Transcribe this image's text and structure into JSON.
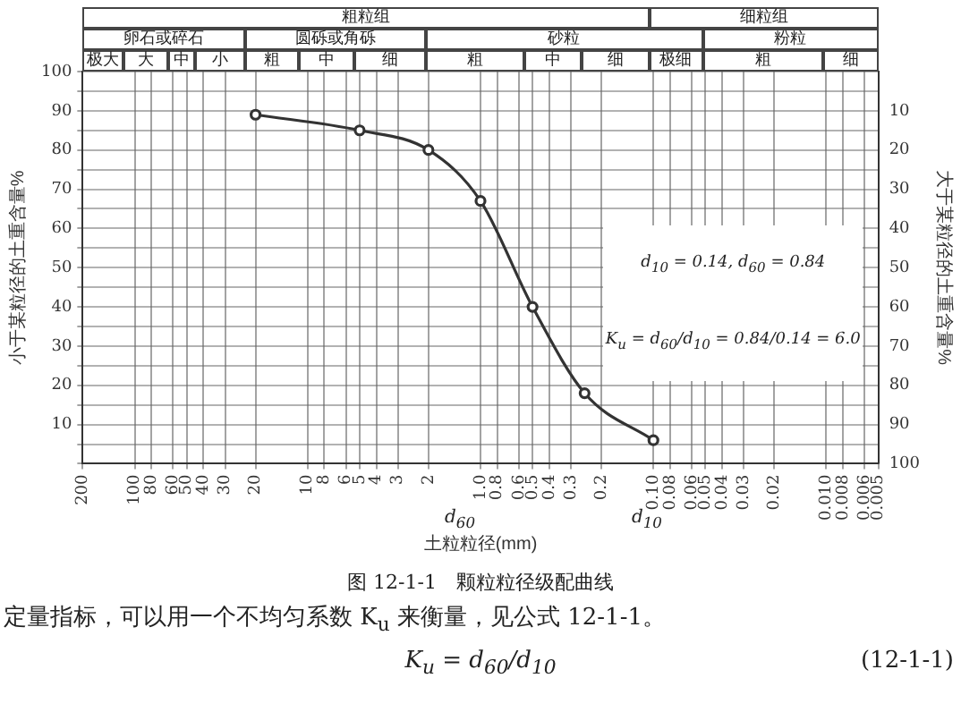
{
  "chart_data": {
    "type": "line",
    "xlabel": "土粒粒径(mm)",
    "ylabel": "小于某粒径的土重含量%",
    "y2label": "大于某粒径的土重含量%",
    "series": [
      {
        "color": "#333333",
        "x": [
          20,
          5,
          2,
          1,
          0.5,
          0.25,
          0.1
        ],
        "values": [
          89,
          85,
          80,
          67,
          40,
          18,
          6
        ]
      }
    ],
    "log": "x",
    "xlim": [
      200,
      0.005
    ],
    "xticks": [
      200,
      100,
      80,
      60,
      50,
      40,
      30,
      20,
      10,
      8,
      6,
      5,
      4,
      3,
      2,
      {
        "value": 1,
        "label": "1.0"
      },
      0.8,
      0.6,
      0.5,
      0.4,
      0.3,
      0.2,
      {
        "value": 0.1,
        "label": "0.10"
      },
      0.08,
      0.06,
      0.05,
      0.04,
      0.03,
      0.02,
      {
        "value": 0.01,
        "label": "0.010"
      },
      0.008,
      0.006,
      0.005
    ],
    "ylim": [
      0,
      100
    ],
    "yticks": [
      {
        "value": 0,
        "label": null
      },
      {
        "value": 5,
        "label": null
      },
      10,
      {
        "value": 15,
        "label": null
      },
      20,
      {
        "value": 25,
        "label": null
      },
      30,
      {
        "value": 35,
        "label": null
      },
      40,
      {
        "value": 45,
        "label": null
      },
      50,
      {
        "value": 55,
        "label": null
      },
      60,
      {
        "value": 65,
        "label": null
      },
      70,
      {
        "value": 75,
        "label": null
      },
      80,
      {
        "value": 85,
        "label": null
      },
      90,
      {
        "value": 95,
        "label": null
      },
      100
    ],
    "y2lim": [
      100,
      0
    ],
    "y2ticks": [
      10,
      20,
      30,
      40,
      50,
      60,
      70,
      80,
      90,
      100
    ],
    "grid": true,
    "legend": false,
    "marker": "circle",
    "line_style": "solid",
    "annotations": [
      "粗粒组",
      "细粒组",
      "卵石或碎石",
      "圆砾或角砾",
      "砂粒",
      "粉粒",
      "极大",
      "大",
      "中",
      "小",
      "粗",
      "中",
      "细",
      "粗",
      "中",
      "细",
      "极细",
      "粗",
      "细",
      "d$_{10}$ = 0.14, d$_{60}$ = 0.84",
      "K$_{u}$ = d$_{60}$/d$_{10}$ = 0.84/0.14 = 6.0",
      "d$_{60}$",
      "d$_{10}$",
      "图 12-1-1　颗粒粒径级配曲线",
      "定量指标，可以用一个不均匀系数 K$_{u}$ 来衡量，见公式 12-1-1。",
      "K$_{u}$ = d$_{60}$/d$_{10}$",
      "(12-1-1)"
    ]
  }
}
